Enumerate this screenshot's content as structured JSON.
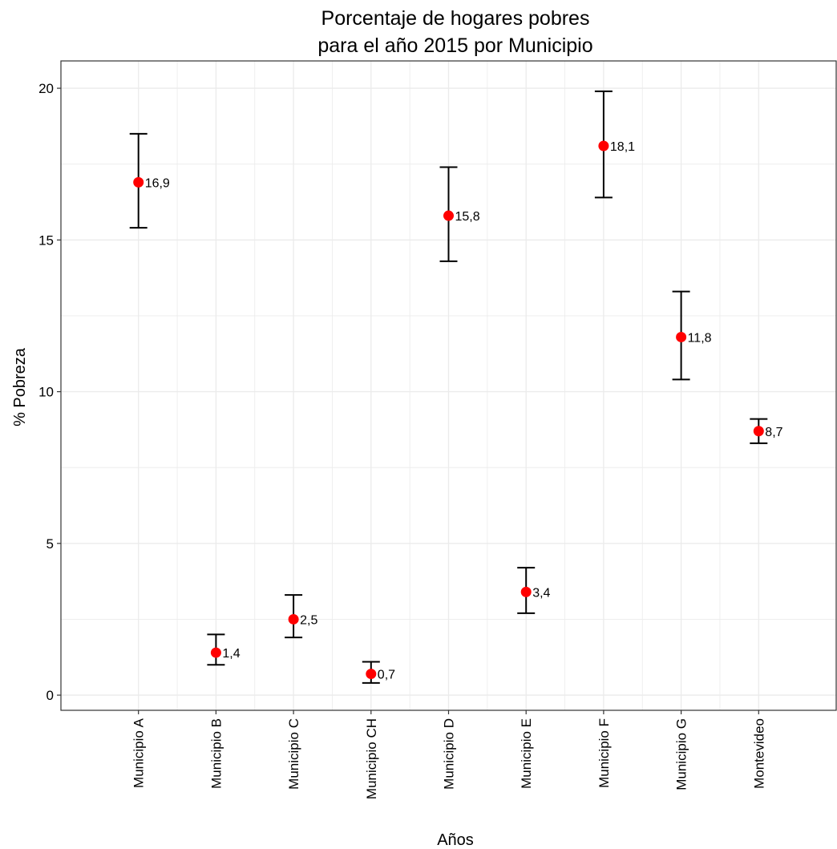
{
  "chart_data": {
    "type": "scatter",
    "title": [
      "Porcentaje de hogares pobres",
      "para el año 2015 por Municipio"
    ],
    "xlabel": "Años",
    "ylabel": "% Pobreza",
    "categories": [
      "Municipio A",
      "Municipio B",
      "Municipio C",
      "Municipio CH",
      "Municipio D",
      "Municipio E",
      "Municipio F",
      "Municipio G",
      "Montevideo"
    ],
    "values": [
      16.9,
      1.4,
      2.5,
      0.7,
      15.8,
      3.4,
      18.1,
      11.8,
      8.7
    ],
    "value_labels": [
      "16,9",
      "1,4",
      "2,5",
      "0,7",
      "15,8",
      "3,4",
      "18,1",
      "11,8",
      "8,7"
    ],
    "error_low": [
      15.4,
      1.0,
      1.9,
      0.4,
      14.3,
      2.7,
      16.4,
      10.4,
      8.3
    ],
    "error_high": [
      18.5,
      2.0,
      3.3,
      1.1,
      17.4,
      4.2,
      19.9,
      13.3,
      9.1
    ],
    "yticks": [
      0,
      5,
      10,
      15,
      20
    ],
    "ylim": [
      -0.5,
      20.9
    ],
    "grid": true,
    "point_color": "#ff0000",
    "errorbar_color": "#000000",
    "grid_color": "#ebebeb",
    "panel_border_color": "#333333"
  }
}
